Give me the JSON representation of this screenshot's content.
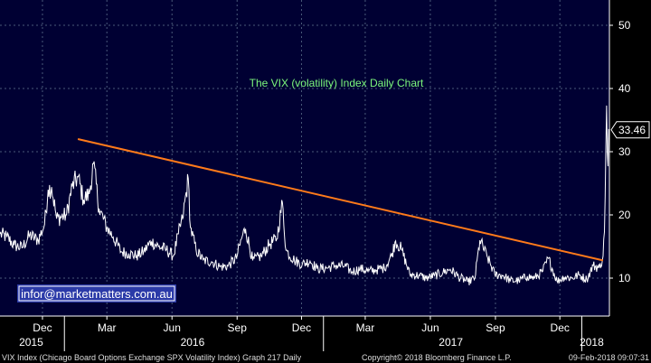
{
  "chart_data": {
    "type": "line",
    "title": "The VIX (volatility) Index Daily Chart",
    "watermark": "infor@marketmatters.com.au",
    "last_value_label": "33.46",
    "last_value": 33.46,
    "ylim": [
      4,
      54
    ],
    "y_ticks": [
      {
        "value": 10,
        "label": "10"
      },
      {
        "value": 20,
        "label": "20"
      },
      {
        "value": 30,
        "label": "30"
      },
      {
        "value": 40,
        "label": "40"
      },
      {
        "value": 50,
        "label": "50"
      }
    ],
    "xlim": [
      "2015-10-02",
      "2018-02-09"
    ],
    "month_ticks": [
      {
        "date": "2015-12-01",
        "label": "Dec"
      },
      {
        "date": "2016-03-01",
        "label": "Mar"
      },
      {
        "date": "2016-06-01",
        "label": "Jun"
      },
      {
        "date": "2016-09-01",
        "label": "Sep"
      },
      {
        "date": "2016-12-01",
        "label": "Dec"
      },
      {
        "date": "2017-03-01",
        "label": "Mar"
      },
      {
        "date": "2017-06-01",
        "label": "Jun"
      },
      {
        "date": "2017-09-01",
        "label": "Sep"
      },
      {
        "date": "2017-12-01",
        "label": "Dec"
      }
    ],
    "year_labels": [
      {
        "date": "2015-11-15",
        "label": "2015"
      },
      {
        "date": "2016-06-30",
        "label": "2016"
      },
      {
        "date": "2017-06-30",
        "label": "2017"
      },
      {
        "date": "2018-01-15",
        "label": "2018"
      }
    ],
    "year_dividers": [
      "2016-01-01",
      "2017-01-01",
      "2018-01-01"
    ],
    "series": [
      {
        "color": "#ffffff",
        "x": [
          "2015-10-02",
          "2015-10-12",
          "2015-10-22",
          "2015-11-02",
          "2015-11-13",
          "2015-11-25",
          "2015-12-04",
          "2015-12-09",
          "2015-12-14",
          "2015-12-21",
          "2016-01-04",
          "2016-01-12",
          "2016-01-20",
          "2016-01-28",
          "2016-02-05",
          "2016-02-11",
          "2016-02-19",
          "2016-03-01",
          "2016-03-10",
          "2016-03-21",
          "2016-04-01",
          "2016-04-12",
          "2016-04-22",
          "2016-05-03",
          "2016-05-13",
          "2016-05-24",
          "2016-06-03",
          "2016-06-10",
          "2016-06-16",
          "2016-06-24",
          "2016-06-27",
          "2016-07-05",
          "2016-07-15",
          "2016-07-27",
          "2016-08-08",
          "2016-08-19",
          "2016-08-31",
          "2016-09-09",
          "2016-09-13",
          "2016-09-23",
          "2016-10-05",
          "2016-10-17",
          "2016-10-27",
          "2016-11-04",
          "2016-11-09",
          "2016-11-21",
          "2016-12-02",
          "2016-12-13",
          "2016-12-23",
          "2017-01-06",
          "2017-01-18",
          "2017-01-31",
          "2017-02-10",
          "2017-02-22",
          "2017-03-06",
          "2017-03-16",
          "2017-03-28",
          "2017-04-07",
          "2017-04-13",
          "2017-04-21",
          "2017-05-03",
          "2017-05-17",
          "2017-05-26",
          "2017-06-07",
          "2017-06-19",
          "2017-06-29",
          "2017-07-11",
          "2017-07-24",
          "2017-08-03",
          "2017-08-10",
          "2017-08-21",
          "2017-08-31",
          "2017-09-12",
          "2017-09-22",
          "2017-10-04",
          "2017-10-16",
          "2017-10-26",
          "2017-11-06",
          "2017-11-15",
          "2017-11-27",
          "2017-12-07",
          "2017-12-18",
          "2017-12-28",
          "2018-01-08",
          "2018-01-17",
          "2018-01-26",
          "2018-01-31",
          "2018-02-02",
          "2018-02-05",
          "2018-02-06",
          "2018-02-07",
          "2018-02-08",
          "2018-02-09"
        ],
        "y": [
          17.0,
          16.5,
          15.2,
          14.8,
          16.8,
          16.0,
          18.5,
          24.0,
          24.4,
          19.4,
          20.0,
          24.5,
          26.0,
          22.4,
          23.3,
          28.1,
          21.0,
          18.0,
          16.5,
          14.2,
          13.9,
          13.5,
          14.2,
          15.8,
          15.0,
          14.5,
          13.5,
          17.0,
          19.4,
          25.8,
          18.0,
          14.5,
          12.8,
          12.6,
          11.8,
          11.9,
          13.2,
          16.9,
          17.8,
          12.8,
          13.5,
          15.4,
          16.2,
          22.0,
          14.4,
          12.8,
          12.2,
          12.7,
          11.5,
          11.6,
          12.0,
          11.9,
          11.0,
          11.5,
          11.1,
          11.3,
          11.6,
          13.5,
          15.9,
          14.6,
          10.6,
          10.4,
          10.0,
          10.4,
          10.9,
          11.4,
          10.2,
          9.4,
          10.0,
          16.0,
          13.2,
          10.6,
          10.4,
          9.6,
          9.6,
          10.3,
          10.0,
          11.0,
          13.1,
          9.5,
          10.2,
          10.0,
          10.5,
          9.8,
          12.0,
          11.6,
          13.5,
          17.3,
          37.3,
          29.9,
          27.7,
          33.5,
          33.46
        ]
      }
    ],
    "trendline": {
      "color": "#ff7a1a",
      "x": [
        "2016-01-20",
        "2018-01-31"
      ],
      "y": [
        32.0,
        12.8
      ]
    },
    "grid": true,
    "legend": "none"
  },
  "footer": {
    "left": "VIX Index (Chicago Board Options Exchange SPX Volatility Index) Graph 217  Daily",
    "copyright": "Copyright© 2018 Bloomberg Finance L.P.",
    "timestamp": "09-Feb-2018 09:07:31"
  },
  "colors": {
    "background": "#000000",
    "plot_background": "#000033",
    "grid": "#4a5a7a",
    "title": "#7cf77c",
    "label_box": "#000000",
    "watermark_box": "#2b3aa8"
  }
}
